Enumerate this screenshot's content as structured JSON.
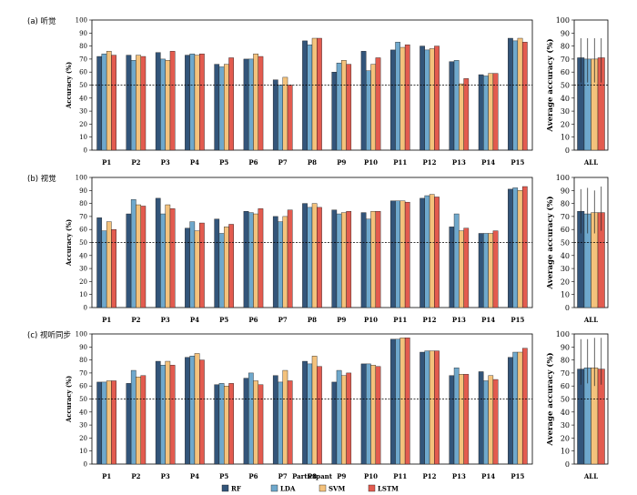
{
  "colors": {
    "RF": "#33557a",
    "LDA": "#6fa8cc",
    "SVM": "#f4c27c",
    "LSTM": "#e35b4f"
  },
  "legend": [
    "RF",
    "LDA",
    "SVM",
    "LSTM"
  ],
  "x_axis_label": "Participant",
  "chart_data": [
    {
      "type": "bar",
      "title": "(a) 听觉",
      "ylabel": "Accuracy (%)",
      "ylim": [
        0,
        100
      ],
      "yticks": [
        0,
        10,
        20,
        30,
        40,
        50,
        60,
        70,
        80,
        90,
        100
      ],
      "reference_line": 50,
      "categories": [
        "P1",
        "P2",
        "P3",
        "P4",
        "P5",
        "P6",
        "P7",
        "P8",
        "P9",
        "P10",
        "P11",
        "P12",
        "P13",
        "P14",
        "P15"
      ],
      "series": [
        {
          "name": "RF",
          "values": [
            72,
            73,
            75,
            73,
            66,
            70,
            54,
            84,
            60,
            76,
            77,
            80,
            68,
            58,
            86
          ]
        },
        {
          "name": "LDA",
          "values": [
            74,
            69,
            70,
            74,
            64,
            70,
            50,
            81,
            67,
            61,
            83,
            77,
            69,
            57,
            84
          ]
        },
        {
          "name": "SVM",
          "values": [
            76,
            73,
            69,
            73,
            66,
            74,
            56,
            86,
            69,
            66,
            79,
            78,
            51,
            59,
            86
          ]
        },
        {
          "name": "LSTM",
          "values": [
            73,
            72,
            76,
            74,
            71,
            72,
            50,
            86,
            66,
            71,
            81,
            80,
            55,
            59,
            83
          ]
        }
      ],
      "summary": {
        "ylabel": "Average accuracy (%)",
        "category": "ALL",
        "values": [
          71,
          70,
          70,
          71
        ],
        "error_high": [
          86,
          86,
          86,
          86
        ],
        "error_low": [
          52,
          52,
          52,
          52
        ]
      }
    },
    {
      "type": "bar",
      "title": "(b) 视觉",
      "ylabel": "Accuracy (%)",
      "ylim": [
        0,
        100
      ],
      "yticks": [
        0,
        10,
        20,
        30,
        40,
        50,
        60,
        70,
        80,
        90,
        100
      ],
      "reference_line": 50,
      "categories": [
        "P1",
        "P2",
        "P3",
        "P4",
        "P5",
        "P6",
        "P7",
        "P8",
        "P9",
        "P10",
        "P11",
        "P12",
        "P13",
        "P14",
        "P15"
      ],
      "series": [
        {
          "name": "RF",
          "values": [
            69,
            72,
            84,
            61,
            68,
            74,
            70,
            80,
            75,
            73,
            82,
            84,
            62,
            57,
            91
          ]
        },
        {
          "name": "LDA",
          "values": [
            59,
            83,
            72,
            66,
            57,
            73,
            66,
            77,
            72,
            68,
            82,
            86,
            72,
            57,
            92
          ]
        },
        {
          "name": "SVM",
          "values": [
            66,
            79,
            79,
            59,
            62,
            72,
            70,
            80,
            73,
            74,
            82,
            87,
            59,
            57,
            90
          ]
        },
        {
          "name": "LSTM",
          "values": [
            60,
            78,
            76,
            65,
            64,
            76,
            75,
            77,
            74,
            74,
            81,
            85,
            61,
            59,
            93
          ]
        }
      ],
      "summary": {
        "ylabel": "Average accuracy (%)",
        "category": "ALL",
        "values": [
          74,
          72,
          73,
          73
        ],
        "error_high": [
          91,
          92,
          90,
          93
        ],
        "error_low": [
          57,
          57,
          57,
          59
        ]
      }
    },
    {
      "type": "bar",
      "title": "(c) 视听同步",
      "ylabel": "Accuracy (%)",
      "ylim": [
        0,
        100
      ],
      "yticks": [
        0,
        10,
        20,
        30,
        40,
        50,
        60,
        70,
        80,
        90,
        100
      ],
      "reference_line": 50,
      "categories": [
        "P1",
        "P2",
        "P3",
        "P4",
        "P5",
        "P6",
        "P7",
        "P8",
        "P9",
        "P10",
        "P11",
        "P12",
        "P13",
        "P14",
        "P15"
      ],
      "series": [
        {
          "name": "RF",
          "values": [
            63,
            62,
            79,
            82,
            61,
            66,
            68,
            79,
            63,
            77,
            96,
            86,
            68,
            71,
            82
          ]
        },
        {
          "name": "LDA",
          "values": [
            63,
            72,
            76,
            83,
            62,
            70,
            63,
            77,
            72,
            77,
            96,
            87,
            74,
            64,
            86
          ]
        },
        {
          "name": "SVM",
          "values": [
            64,
            67,
            79,
            85,
            60,
            64,
            72,
            83,
            68,
            76,
            97,
            87,
            69,
            68,
            86
          ]
        },
        {
          "name": "LSTM",
          "values": [
            64,
            68,
            76,
            80,
            62,
            61,
            64,
            75,
            70,
            75,
            97,
            87,
            69,
            65,
            89
          ]
        }
      ],
      "summary": {
        "ylabel": "Average accuracy (%)",
        "category": "ALL",
        "values": [
          73,
          74,
          74,
          73
        ],
        "error_high": [
          96,
          96,
          97,
          97
        ],
        "error_low": [
          61,
          62,
          60,
          61
        ]
      }
    }
  ]
}
